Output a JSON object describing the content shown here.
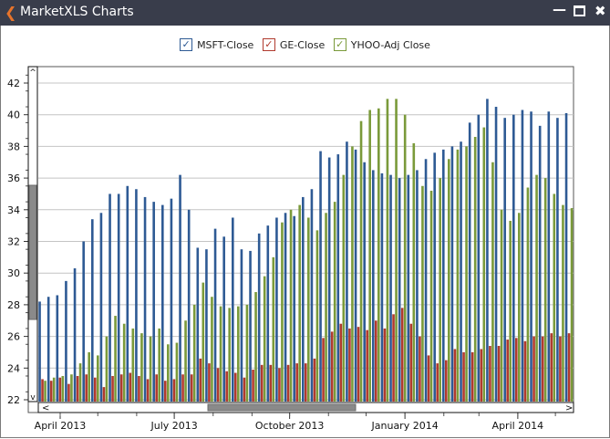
{
  "window": {
    "title": "MarketXLS Charts",
    "back_icon": "chevron-left-icon",
    "minimize_icon": "minimize-icon",
    "maximize_icon": "maximize-icon",
    "close_icon": "close-icon"
  },
  "legend": [
    {
      "label": "MSFT-Close",
      "color": "#2e5a94",
      "checked": true
    },
    {
      "label": "GE-Close",
      "color": "#b03a2e",
      "checked": true
    },
    {
      "label": "YHOO-Adj Close",
      "color": "#7a9a3a",
      "checked": true
    }
  ],
  "chart_data": {
    "type": "bar",
    "ylim": [
      22,
      42.8
    ],
    "yticks": [
      "22",
      "24",
      "26",
      "28",
      "30",
      "32",
      "34",
      "36",
      "38",
      "40",
      "42"
    ],
    "xticks": [
      {
        "label": "April 2013",
        "date": "2013-04-01"
      },
      {
        "label": "July 2013",
        "date": "2013-07-01"
      },
      {
        "label": "October 2013",
        "date": "2013-10-01"
      },
      {
        "label": "January 2014",
        "date": "2014-01-01"
      },
      {
        "label": "April 2014",
        "date": "2014-04-01"
      }
    ],
    "grid": true,
    "legend_position": "top",
    "start_date": "2013-03-18",
    "interval_days": 7,
    "series": [
      {
        "name": "MSFT-Close",
        "color": "#2e5a94",
        "values": [
          28.2,
          28.5,
          28.6,
          29.5,
          30.3,
          32.0,
          33.4,
          33.8,
          35.0,
          35.0,
          35.5,
          35.3,
          34.8,
          34.5,
          34.3,
          34.7,
          36.2,
          34.0,
          31.6,
          31.5,
          32.8,
          32.3,
          33.5,
          31.5,
          31.4,
          32.5,
          33.0,
          33.5,
          33.8,
          33.6,
          34.8,
          35.3,
          37.7,
          37.3,
          37.5,
          38.3,
          37.8,
          37.0,
          36.5,
          36.3,
          36.2,
          36.0,
          36.2,
          36.5,
          37.2,
          37.6,
          37.8,
          38.0,
          38.3,
          39.5,
          40.0,
          41.0,
          40.5,
          39.8,
          40.0,
          40.3,
          40.2,
          39.3,
          40.2,
          39.8,
          40.1
        ]
      },
      {
        "name": "GE-Close",
        "color": "#b03a2e",
        "values": [
          23.3,
          23.2,
          23.4,
          23.0,
          23.5,
          23.6,
          23.4,
          22.8,
          23.5,
          23.6,
          23.7,
          23.5,
          23.3,
          23.6,
          23.2,
          23.3,
          23.6,
          23.6,
          24.6,
          24.3,
          24.0,
          23.8,
          23.7,
          23.4,
          23.9,
          24.2,
          24.2,
          24.0,
          24.2,
          24.3,
          24.3,
          24.6,
          25.9,
          26.3,
          26.8,
          26.5,
          26.6,
          26.4,
          27.0,
          26.5,
          27.4,
          27.8,
          26.8,
          26.0,
          24.8,
          24.3,
          24.5,
          25.2,
          25.0,
          25.0,
          25.2,
          25.4,
          25.4,
          25.8,
          25.9,
          25.7,
          26.0,
          26.0,
          26.2,
          26.0,
          26.2
        ]
      },
      {
        "name": "YHOO-Adj Close",
        "color": "#7a9a3a",
        "values": [
          23.2,
          23.4,
          23.5,
          23.6,
          24.3,
          25.0,
          24.8,
          26.0,
          27.3,
          26.8,
          26.5,
          26.2,
          26.0,
          26.5,
          25.5,
          25.6,
          27.0,
          28.0,
          29.4,
          28.5,
          27.9,
          27.8,
          27.9,
          28.0,
          28.8,
          29.8,
          31.0,
          33.2,
          34.0,
          34.3,
          33.5,
          32.7,
          33.8,
          34.5,
          36.2,
          38.0,
          39.6,
          40.3,
          40.4,
          41.0,
          41.0,
          40.0,
          38.2,
          35.5,
          35.2,
          36.0,
          37.2,
          37.8,
          38.0,
          38.6,
          39.2,
          37.0,
          34.0,
          33.3,
          33.8,
          35.4,
          36.2,
          36.0,
          35.0,
          34.3,
          34.1
        ]
      }
    ]
  },
  "scrollbars": {
    "vertical_thumb_icon": "grip-icon",
    "horizontal_thumb_icon": "grip-icon"
  }
}
